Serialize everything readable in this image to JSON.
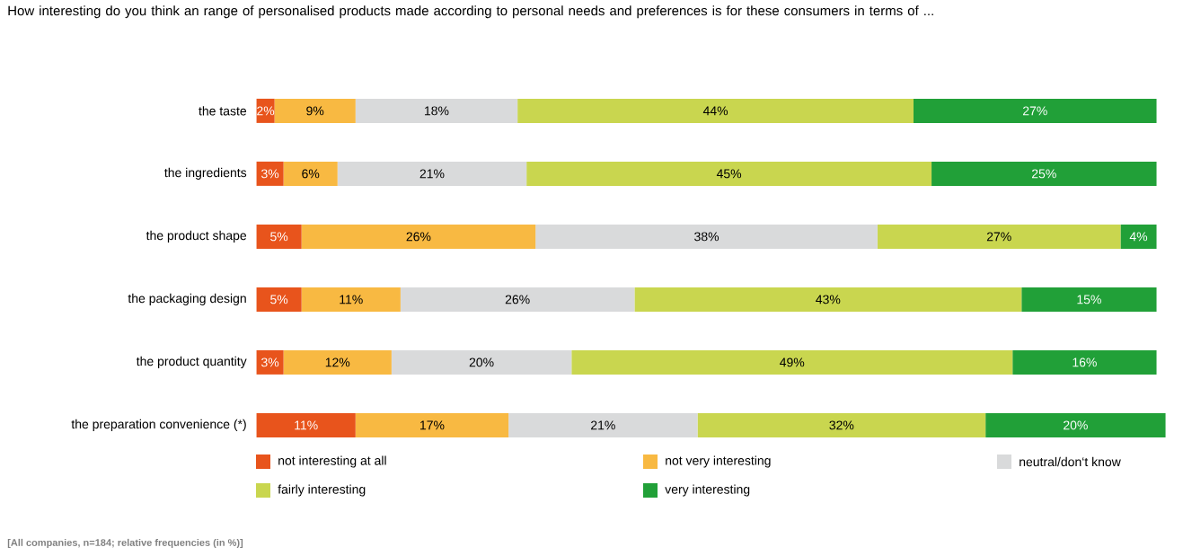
{
  "chart_data": {
    "type": "bar",
    "orientation": "horizontal",
    "stacked": true,
    "title": "How interesting do you think an range of personalised products made according to personal needs and preferences is for these consumers in terms of ...",
    "categories": [
      "the taste",
      "the ingredients",
      "the product shape",
      "the packaging design",
      "the product quantity",
      "the preparation convenience (*)"
    ],
    "series": [
      {
        "name": "not interesting at all",
        "color": "#e8541c",
        "values": [
          2,
          3,
          5,
          5,
          3,
          11
        ],
        "value_labels": [
          "2%",
          "3%",
          "5%",
          "5%",
          "3%",
          "11%"
        ]
      },
      {
        "name": "not very interesting",
        "color": "#f8b942",
        "values": [
          9,
          6,
          26,
          11,
          12,
          17
        ],
        "value_labels": [
          "9%",
          "6%",
          "26%",
          "11%",
          "12%",
          "17%"
        ]
      },
      {
        "name": "neutral/don‘t know",
        "color": "#d9dadb",
        "values": [
          18,
          21,
          38,
          26,
          20,
          21
        ],
        "value_labels": [
          "18%",
          "21%",
          "38%",
          "26%",
          "20%",
          "21%"
        ]
      },
      {
        "name": "fairly interesting",
        "color": "#c9d64f",
        "values": [
          44,
          45,
          27,
          43,
          49,
          32
        ],
        "value_labels": [
          "44%",
          "45%",
          "27%",
          "43%",
          "49%",
          "32%"
        ]
      },
      {
        "name": "very interesting",
        "color": "#21a038",
        "values": [
          27,
          25,
          4,
          15,
          16,
          20
        ],
        "value_labels": [
          "27%",
          "25%",
          "4%",
          "15%",
          "16%",
          "20%"
        ]
      }
    ],
    "tick_labels": "y",
    "legend": "bottom",
    "annotations": [
      "[All companies, n=184; relative frequencies (in %)]"
    ]
  }
}
